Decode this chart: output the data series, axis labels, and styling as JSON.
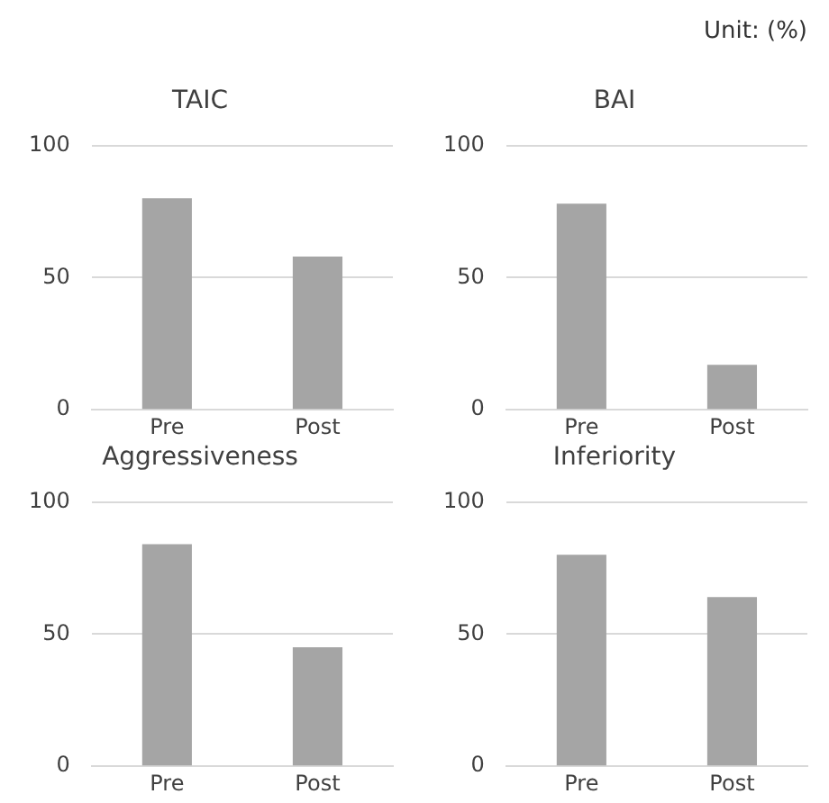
{
  "chart_data": [
    {
      "type": "bar",
      "title": "TAIC",
      "categories": [
        "Pre",
        "Post"
      ],
      "values": [
        80,
        58
      ],
      "color": "#a5a5a5",
      "ylim": [
        0,
        100
      ],
      "yticks": [
        0,
        50,
        100
      ],
      "grid": "y",
      "legend": false
    },
    {
      "type": "bar",
      "title": "BAI",
      "categories": [
        "Pre",
        "Post"
      ],
      "values": [
        78,
        17
      ],
      "color": "#a5a5a5",
      "ylim": [
        0,
        100
      ],
      "yticks": [
        0,
        50,
        100
      ],
      "grid": "y",
      "legend": false,
      "annotations": [
        "Unit: (%)"
      ]
    },
    {
      "type": "bar",
      "title": "Aggressiveness",
      "categories": [
        "Pre",
        "Post"
      ],
      "values": [
        84,
        45
      ],
      "color": "#a5a5a5",
      "ylim": [
        0,
        100
      ],
      "yticks": [
        0,
        50,
        100
      ],
      "grid": "y",
      "legend": false
    },
    {
      "type": "bar",
      "title": "Inferiority",
      "categories": [
        "Pre",
        "Post"
      ],
      "values": [
        80,
        64
      ],
      "color": "#a5a5a5",
      "ylim": [
        0,
        100
      ],
      "yticks": [
        0,
        50,
        100
      ],
      "grid": "y",
      "legend": false
    }
  ]
}
